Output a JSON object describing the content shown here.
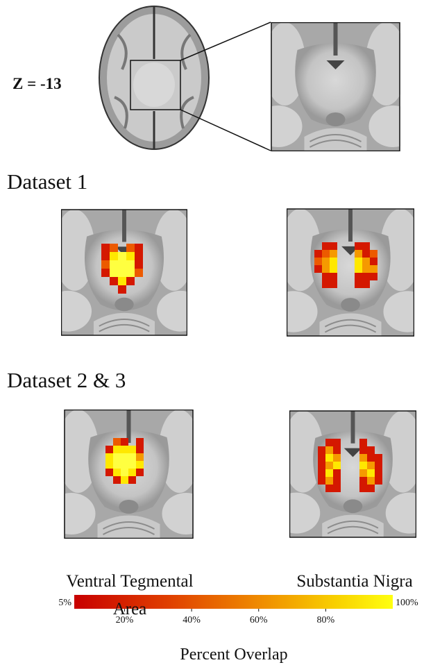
{
  "figure": {
    "slice_label": "Z = -13",
    "rows": [
      {
        "title": "Dataset 1"
      },
      {
        "title": "Dataset 2 & 3"
      }
    ],
    "column_labels": [
      "Ventral Tegmental Area",
      "Substantia Nigra"
    ],
    "colorbar": {
      "title": "Percent Overlap",
      "range": [
        5,
        100
      ],
      "range_labels": [
        "5%",
        "100%"
      ],
      "ticks": [
        {
          "value": 20,
          "label": "20%"
        },
        {
          "value": 40,
          "label": "40%"
        },
        {
          "value": 60,
          "label": "60%"
        },
        {
          "value": 80,
          "label": "80%"
        }
      ]
    }
  }
}
